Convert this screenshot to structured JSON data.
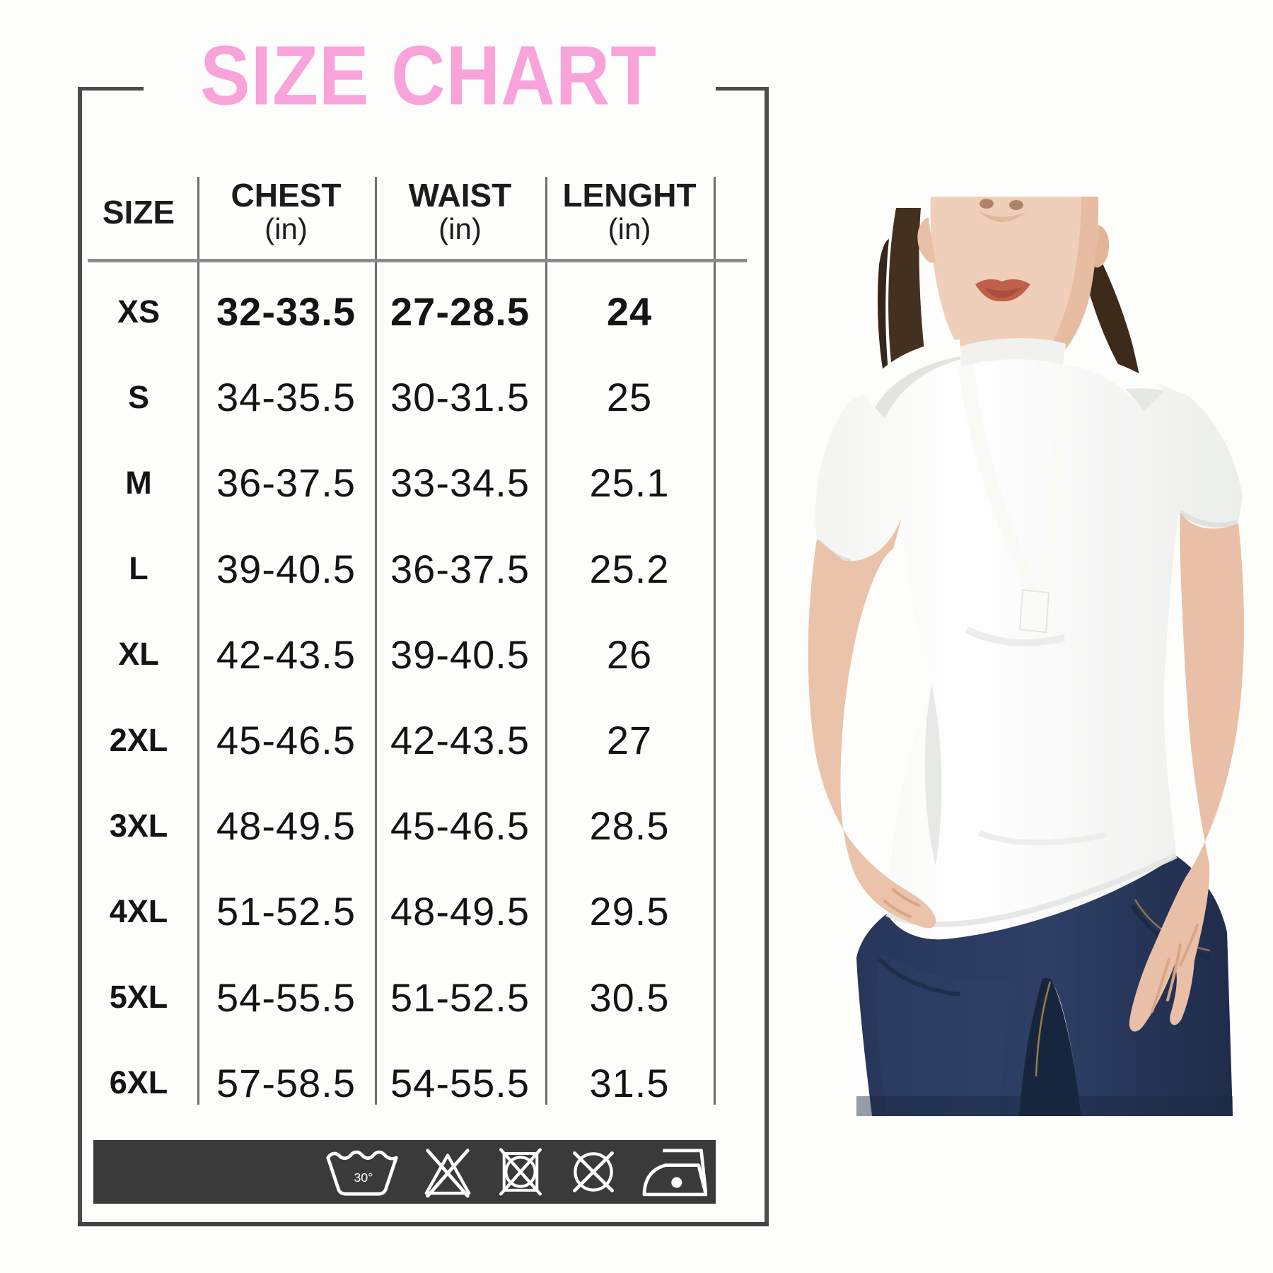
{
  "title": "SIZE CHART",
  "title_color": "#f8a3da",
  "table": {
    "columns": [
      {
        "label": "SIZE",
        "unit": ""
      },
      {
        "label": "CHEST",
        "unit": "(in)"
      },
      {
        "label": "WAIST",
        "unit": "(in)"
      },
      {
        "label": "LENGHT",
        "unit": "(in)"
      }
    ],
    "rows": [
      {
        "size": "XS",
        "chest": "32-33.5",
        "waist": "27-28.5",
        "length": "24"
      },
      {
        "size": "S",
        "chest": "34-35.5",
        "waist": "30-31.5",
        "length": "25"
      },
      {
        "size": "M",
        "chest": "36-37.5",
        "waist": "33-34.5",
        "length": "25.1"
      },
      {
        "size": "L",
        "chest": "39-40.5",
        "waist": "36-37.5",
        "length": "25.2"
      },
      {
        "size": "XL",
        "chest": "42-43.5",
        "waist": "39-40.5",
        "length": "26"
      },
      {
        "size": "2XL",
        "chest": "45-46.5",
        "waist": "42-43.5",
        "length": "27"
      },
      {
        "size": "3XL",
        "chest": "48-49.5",
        "waist": "45-46.5",
        "length": "28.5"
      },
      {
        "size": "4XL",
        "chest": "51-52.5",
        "waist": "48-49.5",
        "length": "29.5"
      },
      {
        "size": "5XL",
        "chest": "54-55.5",
        "waist": "51-52.5",
        "length": "30.5"
      },
      {
        "size": "6XL",
        "chest": "57-58.5",
        "waist": "54-55.5",
        "length": "31.5"
      }
    ]
  },
  "care": {
    "bar_color": "#3a3a3a",
    "wash_temp_label": "30°",
    "icons": [
      "machine-wash-30",
      "do-not-bleach",
      "do-not-tumble-dry",
      "do-not-dry-clean",
      "iron-low-heat"
    ]
  },
  "photo": {
    "alt": "Model wearing white short-sleeve collared polo shirt and dark blue jeans"
  }
}
